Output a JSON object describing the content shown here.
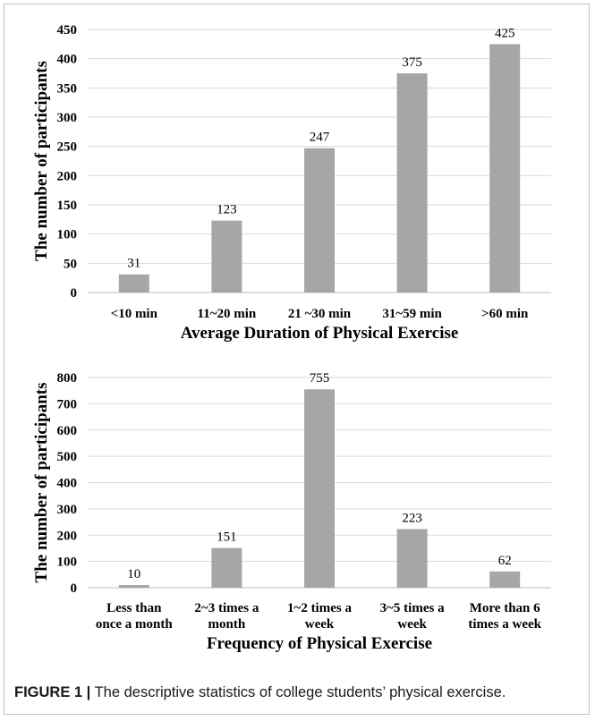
{
  "caption": {
    "label": "FIGURE 1 |",
    "text": " The descriptive statistics of college students’ physical exercise."
  },
  "chart_data": [
    {
      "type": "bar",
      "title": "",
      "xlabel": "Average Duration of Physical Exercise",
      "ylabel": "The number of participants",
      "categories": [
        [
          "<10 min"
        ],
        [
          "11~20 min"
        ],
        [
          "21 ~30 min"
        ],
        [
          "31~59 min"
        ],
        [
          ">60 min"
        ]
      ],
      "values": [
        31,
        123,
        247,
        375,
        425
      ],
      "ylim": [
        0,
        450
      ],
      "yticks": [
        0,
        50,
        100,
        150,
        200,
        250,
        300,
        350,
        400,
        450
      ],
      "grid": true,
      "legend": "none",
      "bar_color": "#a6a6a6"
    },
    {
      "type": "bar",
      "title": "",
      "xlabel": "Frequency of Physical Exercise",
      "ylabel": "The number of participants",
      "categories": [
        [
          "Less than",
          "once a month"
        ],
        [
          "2~3 times a",
          "month"
        ],
        [
          "1~2 times a",
          "week"
        ],
        [
          "3~5 times a",
          "week"
        ],
        [
          "More than 6",
          "times a week"
        ]
      ],
      "values": [
        10,
        151,
        755,
        223,
        62
      ],
      "ylim": [
        0,
        800
      ],
      "yticks": [
        0,
        100,
        200,
        300,
        400,
        500,
        600,
        700,
        800
      ],
      "grid": true,
      "legend": "none",
      "bar_color": "#a6a6a6"
    }
  ]
}
